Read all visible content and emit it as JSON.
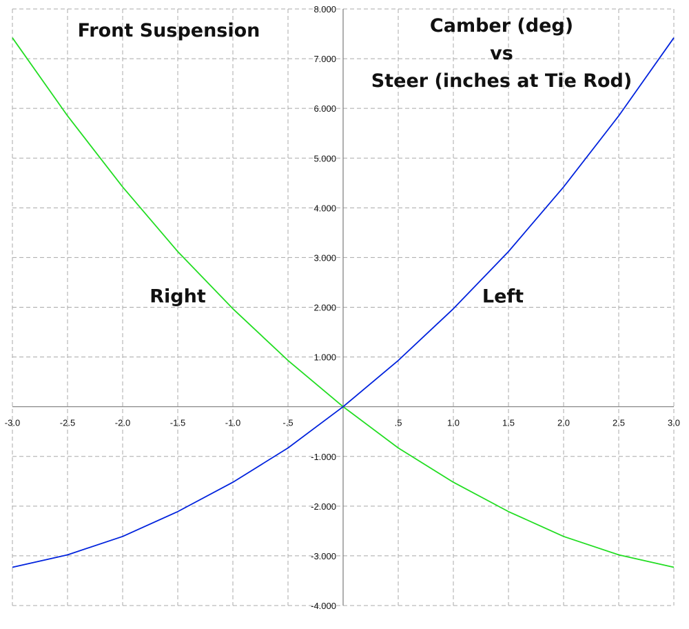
{
  "chart_data": {
    "type": "line",
    "title": "Front Suspension",
    "subtitle_lines": [
      "Camber (deg)",
      "vs",
      "Steer (inches at Tie Rod)"
    ],
    "xlabel": "",
    "ylabel": "",
    "xlim": [
      -3.0,
      3.0
    ],
    "ylim": [
      -4.0,
      8.0
    ],
    "grid": true,
    "x_ticks": [
      {
        "value": -3.0,
        "label": "-3.0"
      },
      {
        "value": -2.5,
        "label": "-2.5"
      },
      {
        "value": -2.0,
        "label": "-2.0"
      },
      {
        "value": -1.5,
        "label": "-1.5"
      },
      {
        "value": -1.0,
        "label": "-1.0"
      },
      {
        "value": -0.5,
        "label": "-.5"
      },
      {
        "value": 0.5,
        "label": ".5"
      },
      {
        "value": 1.0,
        "label": "1.0"
      },
      {
        "value": 1.5,
        "label": "1.5"
      },
      {
        "value": 2.0,
        "label": "2.0"
      },
      {
        "value": 2.5,
        "label": "2.5"
      },
      {
        "value": 3.0,
        "label": "3.0"
      }
    ],
    "y_ticks": [
      {
        "value": 8.0,
        "label": "8.000"
      },
      {
        "value": 7.0,
        "label": "7.000"
      },
      {
        "value": 6.0,
        "label": "6.000"
      },
      {
        "value": 5.0,
        "label": "5.000"
      },
      {
        "value": 4.0,
        "label": "4.000"
      },
      {
        "value": 3.0,
        "label": "3.000"
      },
      {
        "value": 2.0,
        "label": "2.000"
      },
      {
        "value": 1.0,
        "label": "1.000"
      },
      {
        "value": -1.0,
        "label": "-1.000"
      },
      {
        "value": -2.0,
        "label": "-2.000"
      },
      {
        "value": -3.0,
        "label": "-3.000"
      },
      {
        "value": -4.0,
        "label": "-4.000"
      }
    ],
    "x": [
      -3.0,
      -2.5,
      -2.0,
      -1.5,
      -1.0,
      -0.5,
      0.0,
      0.5,
      1.0,
      1.5,
      2.0,
      2.5,
      3.0
    ],
    "series": [
      {
        "label": "Right",
        "color": "#22dd22",
        "values": [
          7.42,
          5.85,
          4.42,
          3.12,
          1.97,
          0.93,
          0.0,
          -0.83,
          -1.52,
          -2.11,
          -2.61,
          -2.98,
          -3.23
        ],
        "label_pos": {
          "x": -1.5,
          "y": 2.1
        }
      },
      {
        "label": "Left",
        "color": "#0022dd",
        "values": [
          -3.23,
          -2.98,
          -2.61,
          -2.11,
          -1.52,
          -0.83,
          0.0,
          0.93,
          1.97,
          3.12,
          4.42,
          5.85,
          7.42
        ],
        "label_pos": {
          "x": 1.45,
          "y": 2.1
        }
      }
    ]
  }
}
